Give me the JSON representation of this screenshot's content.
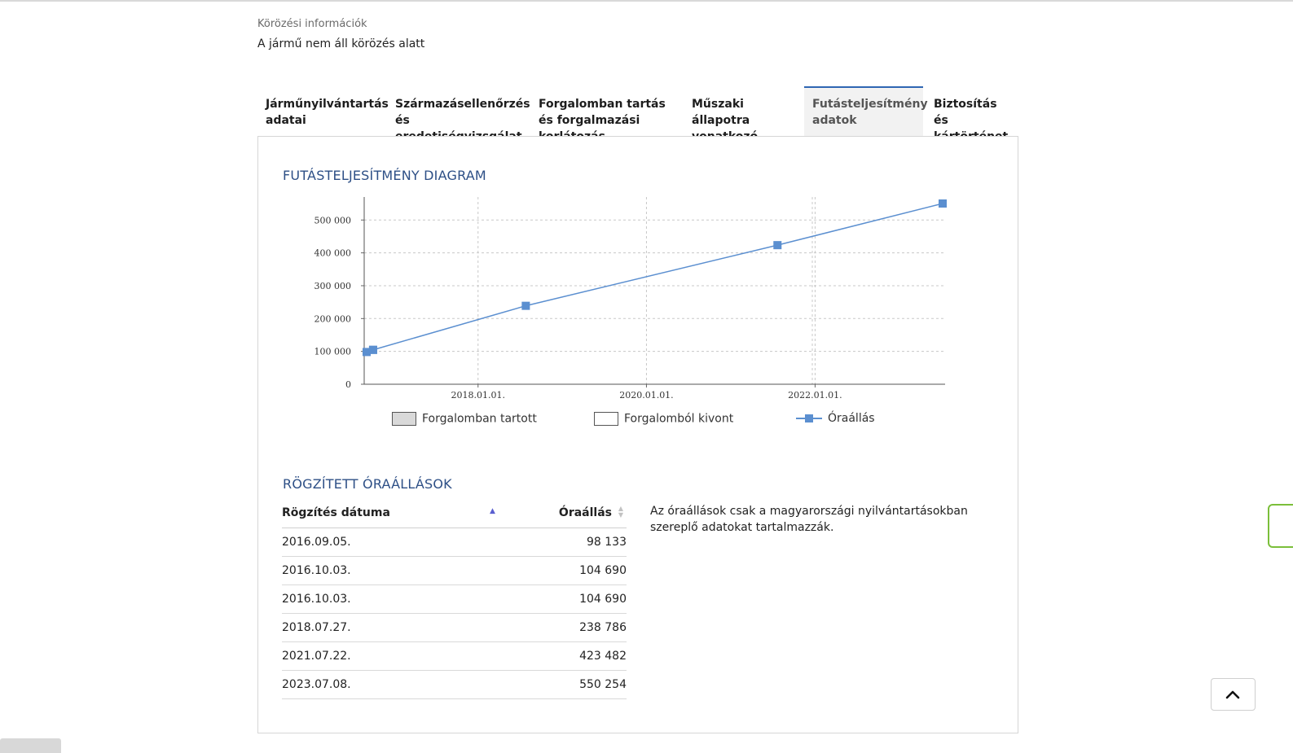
{
  "pursuit": {
    "label": "Körözési információk",
    "value": "A jármű nem áll körözés alatt"
  },
  "tabs": [
    {
      "label": "Járműnyilvántartás adatai",
      "active": false
    },
    {
      "label": "Származásellenőrzés és eredetiségvizsgálat",
      "active": false
    },
    {
      "label": "Forgalomban tartás és forgalmazási korlátozás",
      "active": false
    },
    {
      "label": "Műszaki állapotra vonatkozó adatok",
      "active": false
    },
    {
      "label": "Futásteljesítmény adatok",
      "active": true
    },
    {
      "label": "Biztosítás és kártörténet",
      "active": false
    }
  ],
  "diagram_title": "FUTÁSTELJESÍTMÉNY DIAGRAM",
  "legend": {
    "in_traffic": "Forgalomban tartott",
    "withdrawn": "Forgalomból kivont",
    "odometer": "Óraállás"
  },
  "colors": {
    "series": "#5b8fd0",
    "title": "#2d4f86",
    "active_tab_border": "#2f66b3"
  },
  "chart_data": {
    "type": "line",
    "title": "",
    "xlabel": "",
    "ylabel": "",
    "x_ticks": [
      "2018.01.01.",
      "2020.01.01.",
      "2022.01.01."
    ],
    "y_ticks": [
      "0",
      "100 000",
      "200 000",
      "300 000",
      "400 000",
      "500 000"
    ],
    "ylim": [
      0,
      580000
    ],
    "xlim": [
      "2016.09.05.",
      "2023.07.08."
    ],
    "grid": true,
    "series": [
      {
        "name": "Óraállás",
        "x": [
          "2016.09.05.",
          "2016.10.03.",
          "2016.10.03.",
          "2018.07.27.",
          "2021.07.22.",
          "2023.07.08."
        ],
        "values": [
          98133,
          104690,
          104690,
          238786,
          423482,
          550254
        ]
      }
    ]
  },
  "records": {
    "title": "RÖGZÍTETT ÓRAÁLLÁSOK",
    "col_date": "Rögzítés dátuma",
    "col_value": "Óraállás",
    "rows": [
      {
        "date": "2016.09.05.",
        "value": "98 133"
      },
      {
        "date": "2016.10.03.",
        "value": "104 690"
      },
      {
        "date": "2016.10.03.",
        "value": "104 690"
      },
      {
        "date": "2018.07.27.",
        "value": "238 786"
      },
      {
        "date": "2021.07.22.",
        "value": "423 482"
      },
      {
        "date": "2023.07.08.",
        "value": "550 254"
      }
    ]
  },
  "note": "Az óraállások csak a magyarországi nyilvántartásokban szereplő adatokat tartalmazzák.",
  "icons": {
    "scroll_top": "chevron-up-icon",
    "sort_asc": "sort-ascending-icon",
    "sort_both": "sort-icon"
  }
}
